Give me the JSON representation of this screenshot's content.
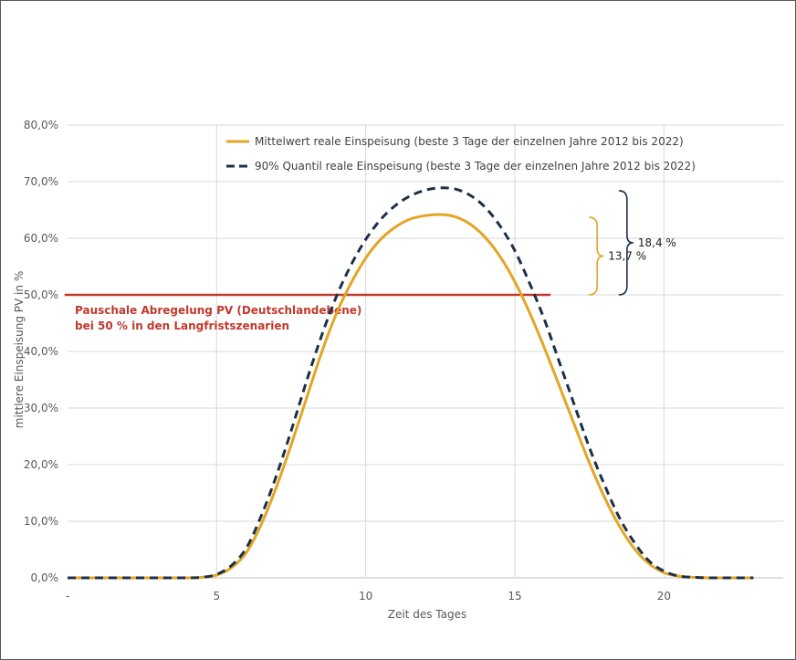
{
  "chart_data": {
    "type": "line",
    "xlabel": "Zeit des Tages",
    "ylabel": "mittlere Einspeisung PV in %",
    "xlim": [
      0,
      24
    ],
    "ylim": [
      0,
      80
    ],
    "x_ticks": [
      {
        "value": 0,
        "label": "-"
      },
      {
        "value": 5,
        "label": "5"
      },
      {
        "value": 10,
        "label": "10"
      },
      {
        "value": 15,
        "label": "15"
      },
      {
        "value": 20,
        "label": "20"
      }
    ],
    "y_ticks": [
      {
        "value": 0,
        "label": "0,0%"
      },
      {
        "value": 10,
        "label": "10,0%"
      },
      {
        "value": 20,
        "label": "20,0%"
      },
      {
        "value": 30,
        "label": "30,0%"
      },
      {
        "value": 40,
        "label": "40,0%"
      },
      {
        "value": 50,
        "label": "50,0%"
      },
      {
        "value": 60,
        "label": "60,0%"
      },
      {
        "value": 70,
        "label": "70,0%"
      },
      {
        "value": 80,
        "label": "80,0%"
      }
    ],
    "grid": true,
    "legend_position": "top",
    "series": [
      {
        "name": "Mittelwert reale Einspeisung (beste 3 Tage der einzelnen Jahre 2012 bis 2022)",
        "style": "solid",
        "color": "#E3A524",
        "x": [
          0,
          1,
          2,
          3,
          4,
          4.5,
          5,
          5.5,
          6,
          6.5,
          7,
          7.5,
          8,
          8.5,
          9,
          9.5,
          10,
          10.5,
          11,
          11.5,
          12,
          12.5,
          13,
          13.5,
          14,
          14.5,
          15,
          15.5,
          16,
          16.5,
          17,
          17.5,
          18,
          18.5,
          19,
          19.5,
          20,
          20.5,
          21,
          21.5,
          22,
          23
        ],
        "values": [
          0,
          0,
          0,
          0,
          0,
          0.1,
          0.5,
          1.8,
          4.5,
          9.5,
          16.0,
          23.5,
          31.5,
          39.5,
          46.5,
          52.0,
          56.5,
          59.8,
          62.0,
          63.4,
          64.0,
          64.2,
          63.8,
          62.5,
          60.2,
          56.8,
          52.3,
          46.8,
          40.5,
          33.8,
          27.0,
          20.3,
          14.3,
          9.2,
          5.2,
          2.5,
          0.9,
          0.3,
          0.1,
          0,
          0,
          0
        ]
      },
      {
        "name": "90% Quantil reale Einspeisung (beste 3 Tage der einzelnen Jahre 2012 bis 2022)",
        "style": "dashed",
        "color": "#1B3048",
        "x": [
          0,
          1,
          2,
          3,
          4,
          4.5,
          5,
          5.5,
          6,
          6.5,
          7,
          7.5,
          8,
          8.5,
          9,
          9.5,
          10,
          10.5,
          11,
          11.5,
          12,
          12.5,
          13,
          13.5,
          14,
          14.5,
          15,
          15.5,
          16,
          16.5,
          17,
          17.5,
          18,
          18.5,
          19,
          19.5,
          20,
          20.5,
          21,
          21.5,
          22,
          23
        ],
        "values": [
          0,
          0,
          0,
          0,
          0,
          0.1,
          0.6,
          2.2,
          5.3,
          11.0,
          18.0,
          26.0,
          34.5,
          42.5,
          49.5,
          55.2,
          59.8,
          63.3,
          65.8,
          67.5,
          68.5,
          68.9,
          68.7,
          67.6,
          65.5,
          62.2,
          57.8,
          52.0,
          45.5,
          38.0,
          30.5,
          23.0,
          16.5,
          10.7,
          6.3,
          3.0,
          1.2,
          0.3,
          0.1,
          0,
          0,
          0
        ]
      }
    ],
    "reference_line": {
      "value": 50,
      "x_start": -0.1,
      "x_end": 16.2,
      "color": "#C0392B",
      "label_line1": "Pauschale Abregelung PV (Deutschlandebene)",
      "label_line2": "bei 50 % in den Langfristszenarien"
    },
    "annotations": [
      {
        "label": "13,7 %",
        "from": 50,
        "to": 63.7,
        "color": "#E3A524",
        "x": 17.7
      },
      {
        "label": "18,4 %",
        "from": 50,
        "to": 68.4,
        "color": "#1B3048",
        "x": 18.7
      }
    ]
  }
}
